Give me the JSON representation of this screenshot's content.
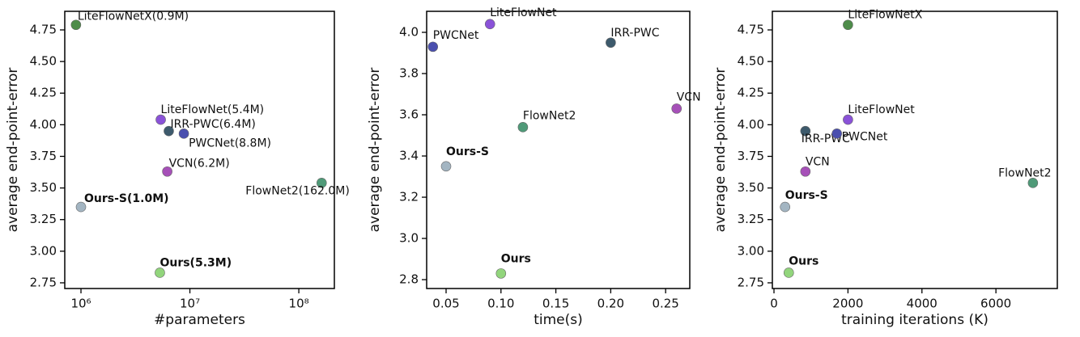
{
  "chart_data": [
    {
      "type": "scatter",
      "xlabel": "#parameters",
      "ylabel": "average end-point-error",
      "xscale": "log",
      "xlim": [
        710000,
        212000000
      ],
      "ylim": [
        2.705,
        4.897
      ],
      "xticks": [
        {
          "value": 1000000,
          "label": "10⁶"
        },
        {
          "value": 10000000,
          "label": "10⁷"
        },
        {
          "value": 100000000,
          "label": "10⁸"
        }
      ],
      "yticks": [
        {
          "value": 2.75,
          "label": "2.75"
        },
        {
          "value": 3.0,
          "label": "3.00"
        },
        {
          "value": 3.25,
          "label": "3.25"
        },
        {
          "value": 3.5,
          "label": "3.50"
        },
        {
          "value": 3.75,
          "label": "3.75"
        },
        {
          "value": 4.0,
          "label": "4.00"
        },
        {
          "value": 4.25,
          "label": "4.25"
        },
        {
          "value": 4.5,
          "label": "4.50"
        },
        {
          "value": 4.75,
          "label": "4.75"
        }
      ],
      "labels": [
        "LiteFlowNetX(0.9M)",
        "LiteFlowNet(5.4M)",
        "IRR-PWC(6.4M)",
        "PWCNet(8.8M)",
        "VCN(6.2M)",
        "FlowNet2(162.0M)",
        "Ours-S(1.0M)",
        "Ours(5.3M)"
      ],
      "bold_labels": [
        false,
        false,
        false,
        false,
        false,
        false,
        true,
        true
      ],
      "x": [
        900000,
        5400000,
        6400000,
        8800000,
        6200000,
        162000000,
        1000000,
        5300000
      ],
      "values": [
        4.79,
        4.04,
        3.95,
        3.93,
        3.63,
        3.54,
        3.35,
        2.83
      ],
      "colors": [
        "#4e8c4a",
        "#8a52d8",
        "#3d5a6c",
        "#4a4fae",
        "#a650b8",
        "#4f9a78",
        "#a3b5c2",
        "#92d57c"
      ]
    },
    {
      "type": "scatter",
      "xlabel": "time(s)",
      "ylabel": "average end-point-error",
      "xscale": "linear",
      "xlim": [
        0.0323,
        0.272
      ],
      "ylim": [
        2.757,
        4.102
      ],
      "xticks": [
        0.05,
        {
          "value": 0.1,
          "label": "0.10"
        },
        0.15,
        {
          "value": 0.2,
          "label": "0.20"
        },
        0.25
      ],
      "yticks": [
        2.8,
        {
          "value": 3.0,
          "label": "3.0"
        },
        3.2,
        3.4,
        3.6,
        3.8,
        {
          "value": 4.0,
          "label": "4.0"
        }
      ],
      "labels": [
        "PWCNet",
        "LiteFlowNet",
        "IRR-PWC",
        "VCN",
        "FlowNet2",
        "Ours-S",
        "Ours"
      ],
      "bold_labels": [
        false,
        false,
        false,
        false,
        false,
        true,
        true
      ],
      "x": [
        0.038,
        0.09,
        0.2,
        0.26,
        0.12,
        0.05,
        0.1
      ],
      "values": [
        3.93,
        4.04,
        3.95,
        3.63,
        3.54,
        3.35,
        2.83
      ],
      "colors": [
        "#4a4fae",
        "#8a52d8",
        "#3d5a6c",
        "#a650b8",
        "#4f9a78",
        "#a3b5c2",
        "#92d57c"
      ]
    },
    {
      "type": "scatter",
      "xlabel": "training iterations (K)",
      "ylabel": "average end-point-error",
      "xscale": "linear",
      "xlim": [
        -44,
        7660
      ],
      "ylim": [
        2.705,
        4.897
      ],
      "xticks": [
        0,
        2000,
        4000,
        6000
      ],
      "yticks": [
        {
          "value": 2.75,
          "label": "2.75"
        },
        {
          "value": 3.0,
          "label": "3.00"
        },
        {
          "value": 3.25,
          "label": "3.25"
        },
        {
          "value": 3.5,
          "label": "3.50"
        },
        {
          "value": 3.75,
          "label": "3.75"
        },
        {
          "value": 4.0,
          "label": "4.00"
        },
        {
          "value": 4.25,
          "label": "4.25"
        },
        {
          "value": 4.5,
          "label": "4.50"
        },
        {
          "value": 4.75,
          "label": "4.75"
        }
      ],
      "labels": [
        "LiteFlowNetX",
        "LiteFlowNet",
        "IRR-PWC",
        "PWCNet",
        "VCN",
        "FlowNet2",
        "Ours-S",
        "Ours"
      ],
      "bold_labels": [
        false,
        false,
        false,
        false,
        false,
        false,
        true,
        true
      ],
      "x": [
        2000,
        2000,
        850,
        1700,
        850,
        7000,
        300,
        400
      ],
      "values": [
        4.79,
        4.04,
        3.95,
        3.93,
        3.63,
        3.54,
        3.35,
        2.83
      ],
      "colors": [
        "#4e8c4a",
        "#8a52d8",
        "#3d5a6c",
        "#4a4fae",
        "#a650b8",
        "#4f9a78",
        "#a3b5c2",
        "#92d57c"
      ]
    }
  ]
}
